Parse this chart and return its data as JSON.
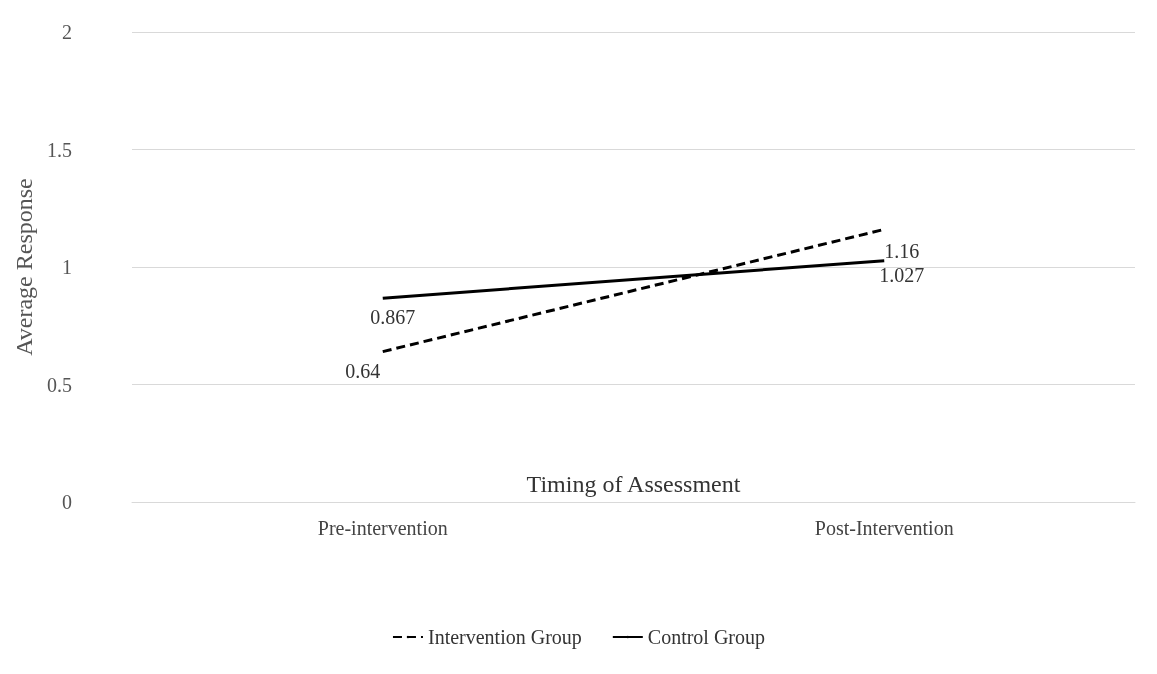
{
  "chart_data": {
    "type": "line",
    "xlabel": "Timing of Assessment",
    "ylabel": "Average Response",
    "categories": [
      "Pre-intervention",
      "Post-Intervention"
    ],
    "series": [
      {
        "name": "Intervention Group",
        "color": "#000000",
        "values": [
          0.64,
          1.16
        ],
        "line_style": "dashed"
      },
      {
        "name": "Control Group",
        "color": "#000000",
        "values": [
          0.867,
          1.027
        ],
        "line_style": "solid"
      }
    ],
    "ylim": [
      0,
      2
    ],
    "yticks": [
      0,
      0.5,
      1,
      1.5,
      2
    ],
    "grid": "y",
    "legend": "bottom",
    "marker": "none",
    "data_labels": true
  }
}
